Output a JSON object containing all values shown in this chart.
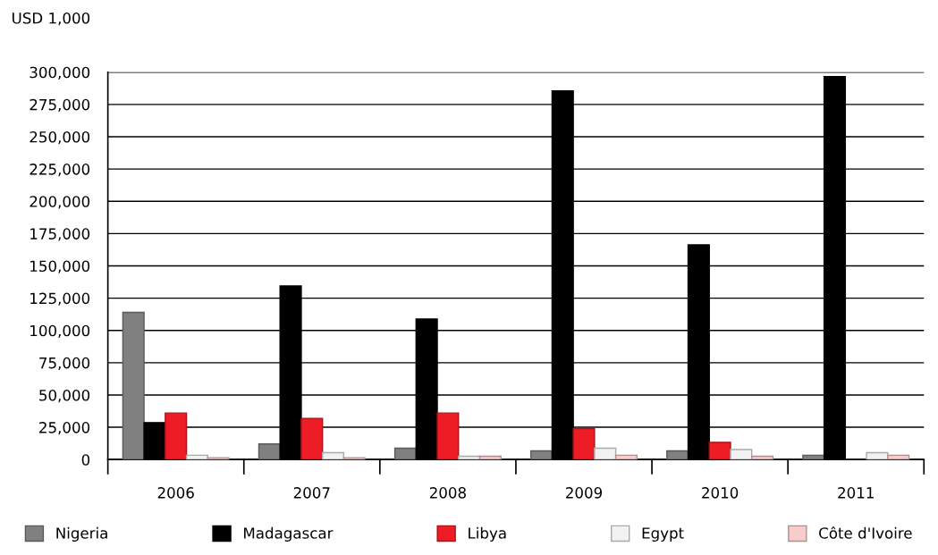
{
  "chart_data": {
    "type": "bar",
    "ylabel": "USD 1,000",
    "categories": [
      "2006",
      "2007",
      "2008",
      "2009",
      "2010",
      "2011"
    ],
    "series": [
      {
        "name": "Nigeria",
        "color": "#808080",
        "values": [
          114000,
          12100,
          8800,
          6700,
          6700,
          3300
        ]
      },
      {
        "name": "Madagascar",
        "color": "#000000",
        "values": [
          28600,
          134400,
          108800,
          285500,
          166300,
          296500
        ]
      },
      {
        "name": "Libya",
        "color": "#ee1c25",
        "values": [
          36000,
          31900,
          36000,
          24000,
          13300,
          null
        ]
      },
      {
        "name": "Egypt",
        "color": "#f2f2f2",
        "values": [
          3300,
          5300,
          2600,
          8800,
          7700,
          5300
        ]
      },
      {
        "name": "Côte d'Ivoire",
        "color": "#f9cccc",
        "values": [
          1400,
          1400,
          2600,
          3300,
          2600,
          3300
        ]
      }
    ],
    "ylim": [
      0,
      300000
    ],
    "yticks": [
      {
        "value": 0,
        "label": "0"
      },
      {
        "value": 25000,
        "label": "25,000"
      },
      {
        "value": 50000,
        "label": "50,000"
      },
      {
        "value": 75000,
        "label": "75,000"
      },
      {
        "value": 100000,
        "label": "100,000"
      },
      {
        "value": 125000,
        "label": "125,000"
      },
      {
        "value": 150000,
        "label": "150,000"
      },
      {
        "value": 175000,
        "label": "175,000"
      },
      {
        "value": 200000,
        "label": "200,000"
      },
      {
        "value": 225000,
        "label": "225,000"
      },
      {
        "value": 250000,
        "label": "250,000"
      },
      {
        "value": 275000,
        "label": "275,000"
      },
      {
        "value": 300000,
        "label": "300,000"
      }
    ],
    "grid": "y",
    "legend": "bottom"
  }
}
